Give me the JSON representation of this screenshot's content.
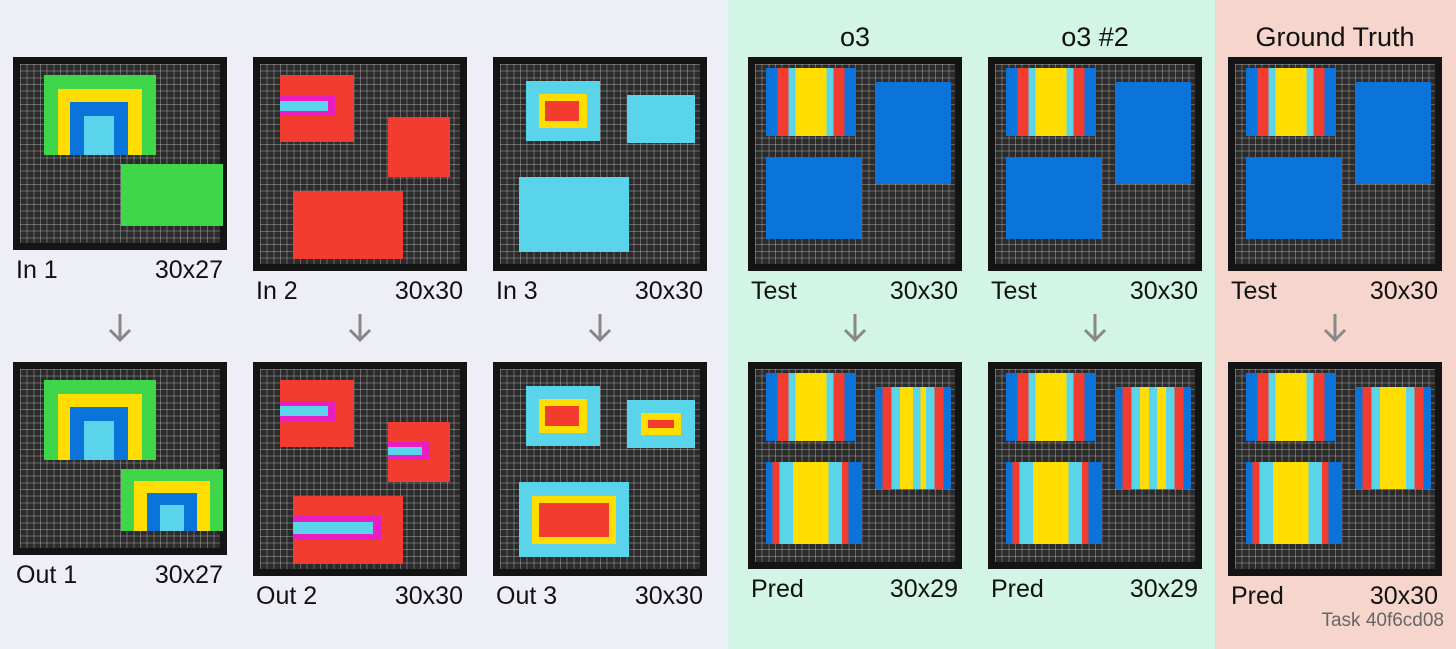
{
  "panels": {
    "train_bg": "#eeeef6",
    "o3_bg": "#d3f5e6",
    "truth_bg": "#f6d6cc"
  },
  "columns": {
    "o3": "o3",
    "o3_2": "o3 #2",
    "truth": "Ground Truth"
  },
  "pairs": [
    {
      "in_label": "In 1",
      "in_size": "30x27",
      "out_label": "Out 1",
      "out_size": "30x27"
    },
    {
      "in_label": "In 2",
      "in_size": "30x30",
      "out_label": "Out 2",
      "out_size": "30x30"
    },
    {
      "in_label": "In 3",
      "in_size": "30x30",
      "out_label": "Out 3",
      "out_size": "30x30"
    }
  ],
  "attempts": [
    {
      "test_label": "Test",
      "test_size": "30x30",
      "pred_label": "Pred",
      "pred_size": "30x29"
    },
    {
      "test_label": "Test",
      "test_size": "30x30",
      "pred_label": "Pred",
      "pred_size": "30x29"
    },
    {
      "test_label": "Test",
      "test_size": "30x30",
      "pred_label": "Pred",
      "pred_size": "30x30"
    }
  ],
  "task_id": "Task 40f6cd08",
  "colors": {
    "green": "#3fd64a",
    "yellow": "#ffdd00",
    "blue": "#0a74da",
    "cyan": "#5ad4ea",
    "red": "#f23c30",
    "magenta": "#e91ec0",
    "grid": "#2b2b2b",
    "arrow": "#888888"
  }
}
